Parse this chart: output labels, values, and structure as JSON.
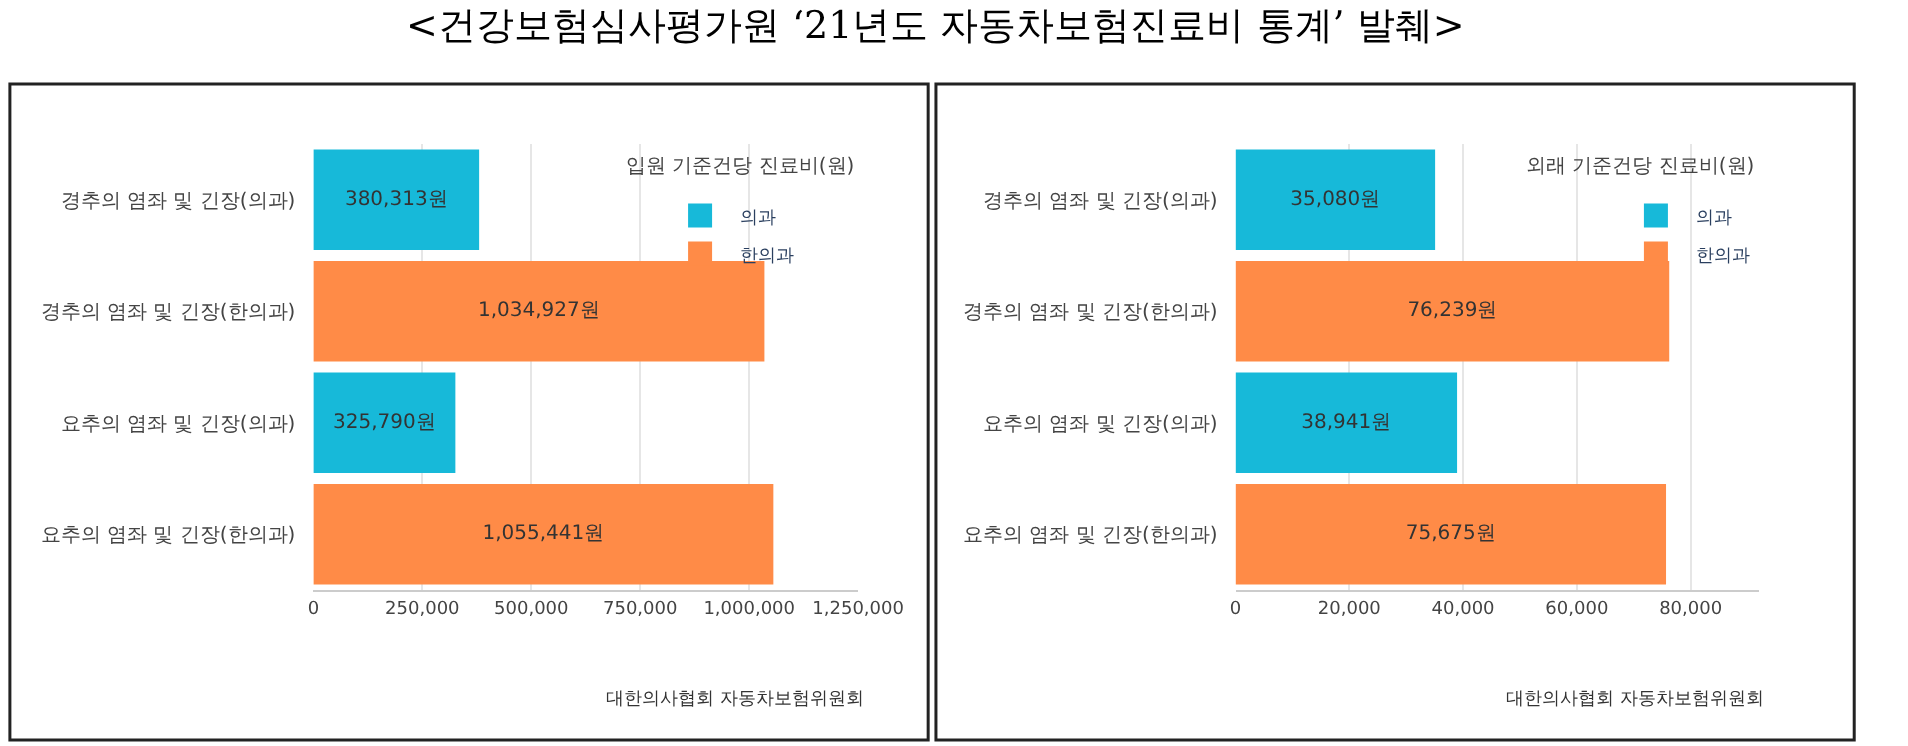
{
  "chart_data": [
    {
      "type": "bar",
      "orientation": "horizontal",
      "title": "입원 기준건당 진료비(원)",
      "categories": [
        "경추의 염좌 및 긴장(의과)",
        "경추의 염좌 및 긴장(한의과)",
        "요추의 염좌 및 긴장(의과)",
        "요추의 염좌 및 긴장(한의과)"
      ],
      "series": [
        {
          "name": "의과",
          "color": "#17b9d9",
          "values": [
            380313,
            null,
            325790,
            null
          ],
          "value_labels": [
            "380,313원",
            null,
            "325,790원",
            null
          ]
        },
        {
          "name": "한의과",
          "color": "#ff8b47",
          "values": [
            null,
            1034927,
            null,
            1055441
          ],
          "value_labels": [
            null,
            "1,034,927원",
            null,
            "1,055,441원"
          ]
        }
      ],
      "xlim": [
        0,
        1250000
      ],
      "xticks": [
        0,
        {
          "value": 250000,
          "label": "250,000"
        },
        {
          "value": 500000,
          "label": "500,000"
        },
        {
          "value": 750000,
          "label": "750,000"
        },
        {
          "value": 1000000,
          "label": "1,000,000"
        },
        {
          "value": 1250000,
          "label": "1,250,000"
        }
      ],
      "grid": "x",
      "legend": "top right",
      "annotations": [
        "<건강보험심사평가원 ‘21년도 자동차보험진료비 통계’ 발췌>",
        "대한의사협회 자동차보험위원회"
      ]
    },
    {
      "type": "bar",
      "orientation": "horizontal",
      "title": "외래 기준건당 진료비(원)",
      "categories": [
        "경추의 염좌 및 긴장(의과)",
        "경추의 염좌 및 긴장(한의과)",
        "요추의 염좌 및 긴장(의과)",
        "요추의 염좌 및 긴장(한의과)"
      ],
      "series": [
        {
          "name": "의과",
          "color": "#17b9d9",
          "values": [
            35080,
            null,
            38941,
            null
          ],
          "value_labels": [
            "35,080원",
            null,
            "38,941원",
            null
          ]
        },
        {
          "name": "한의과",
          "color": "#ff8b47",
          "values": [
            null,
            76239,
            null,
            75675
          ],
          "value_labels": [
            null,
            "76,239원",
            null,
            "75,675원"
          ]
        }
      ],
      "xlim": [
        0,
        92000
      ],
      "xticks": [
        0,
        {
          "value": 20000,
          "label": "20,000"
        },
        {
          "value": 40000,
          "label": "40,000"
        },
        {
          "value": 60000,
          "label": "60,000"
        },
        {
          "value": 80000,
          "label": "80,000"
        }
      ],
      "grid": "x",
      "legend": "top right",
      "annotations": [
        "대한의사협회 자동차보험위원회"
      ]
    }
  ]
}
